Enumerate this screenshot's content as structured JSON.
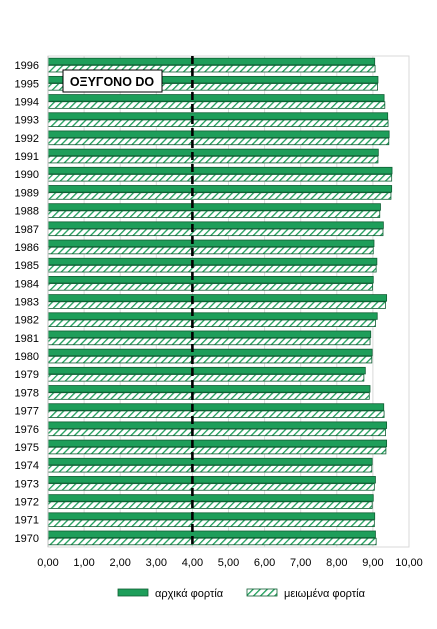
{
  "chart_data": {
    "type": "bar",
    "orientation": "horizontal",
    "annotation": "ΟΞΥΓΟΝΟ DO",
    "categories": [
      "1970",
      "1971",
      "1972",
      "1973",
      "1974",
      "1975",
      "1976",
      "1977",
      "1978",
      "1979",
      "1980",
      "1981",
      "1982",
      "1983",
      "1984",
      "1985",
      "1986",
      "1987",
      "1988",
      "1989",
      "1990",
      "1991",
      "1992",
      "1993",
      "1994",
      "1995",
      "1996"
    ],
    "series": [
      {
        "name": "αρχικά φορτία",
        "style": "solid",
        "color": "#1e9e5a",
        "values": [
          9.07,
          9.05,
          9.01,
          9.07,
          8.98,
          9.38,
          9.38,
          9.3,
          8.92,
          8.79,
          8.98,
          8.94,
          9.12,
          9.38,
          9.01,
          9.11,
          9.03,
          9.29,
          9.21,
          9.52,
          9.53,
          9.15,
          9.45,
          9.41,
          9.31,
          9.14,
          9.05
        ]
      },
      {
        "name": "μειωμένα φορτία",
        "style": "hatched",
        "color": "#1e9e5a",
        "values": [
          9.09,
          9.04,
          8.98,
          9.04,
          8.97,
          9.36,
          9.35,
          9.31,
          8.9,
          8.75,
          8.97,
          8.92,
          9.07,
          9.35,
          8.99,
          9.09,
          9.01,
          9.28,
          9.19,
          9.5,
          9.52,
          9.14,
          9.44,
          9.42,
          9.33,
          9.13,
          9.06
        ]
      }
    ],
    "reference_line": {
      "value": 4.0,
      "style": "dashed",
      "color": "#000000"
    },
    "xlim": [
      0,
      10
    ],
    "x_ticks": [
      "0,00",
      "1,00",
      "2,00",
      "3,00",
      "4,00",
      "5,00",
      "6,00",
      "7,00",
      "8,00",
      "9,00",
      "10,00"
    ],
    "grid": "vertical",
    "legend_position": "bottom"
  }
}
